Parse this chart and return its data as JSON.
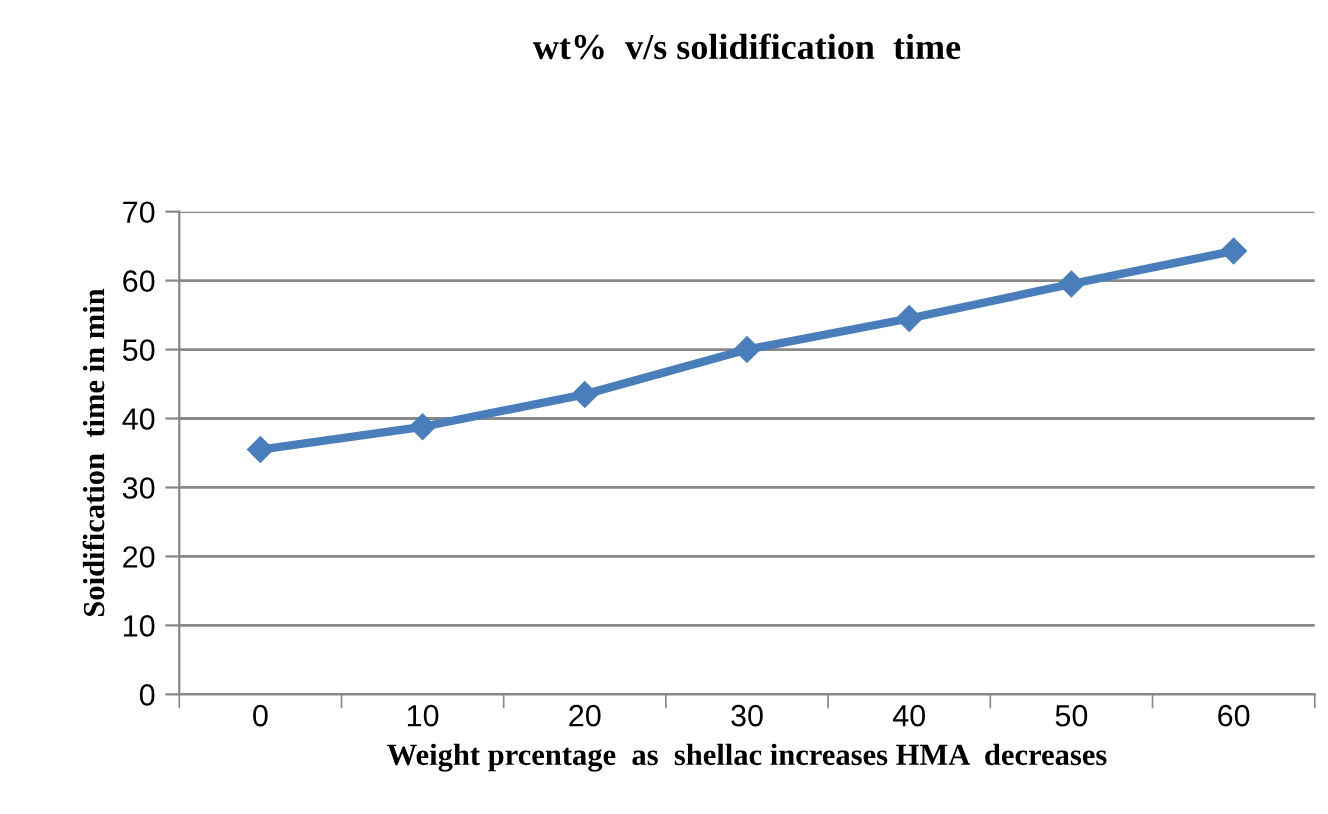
{
  "chart_data": {
    "type": "line",
    "title": "wt%  v/s solidification  time",
    "xlabel": "Weight prcentage  as  shellac increases HMA  decreases",
    "ylabel": "Soidification  time in min",
    "categories": [
      "0",
      "10",
      "20",
      "30",
      "40",
      "50",
      "60"
    ],
    "series": [
      {
        "color": "#4a7ebb",
        "values": [
          35.5,
          38.8,
          43.5,
          50,
          54.5,
          59.5,
          64.3
        ]
      }
    ],
    "ylim": [
      0,
      70
    ],
    "yticks": [
      0,
      10,
      20,
      30,
      40,
      50,
      60,
      70
    ],
    "grid": "y",
    "marker": "diamond",
    "line_style": "solid",
    "legend": false
  }
}
